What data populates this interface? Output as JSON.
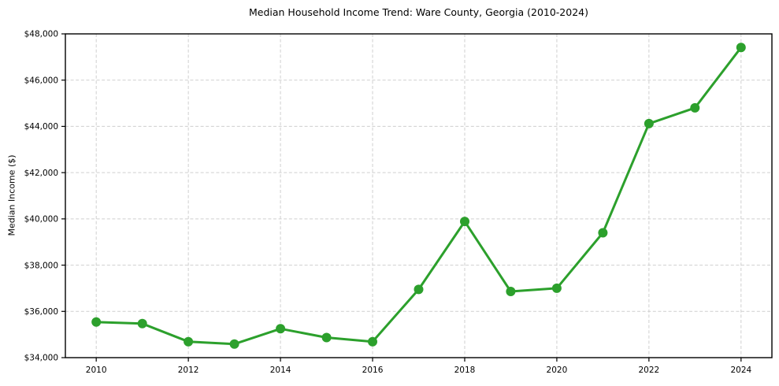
{
  "chart_data": {
    "type": "line",
    "title": "Median Household Income Trend: Ware County, Georgia (2010-2024)",
    "xlabel": "",
    "ylabel": "Median Income ($)",
    "series": [
      {
        "name": "Median Household Income",
        "x": [
          2010,
          2011,
          2012,
          2013,
          2014,
          2015,
          2016,
          2017,
          2018,
          2019,
          2020,
          2021,
          2022,
          2023,
          2024
        ],
        "values": [
          35540,
          35470,
          34690,
          34590,
          35250,
          34870,
          34690,
          36950,
          39890,
          36860,
          37000,
          39400,
          44120,
          44800,
          47410
        ]
      }
    ],
    "xlim": [
      2009.33,
      2024.67
    ],
    "ylim": [
      34000,
      48000
    ],
    "xticks": [
      2010,
      2012,
      2014,
      2016,
      2018,
      2020,
      2022,
      2024
    ],
    "xtick_labels": [
      "2010",
      "2012",
      "2014",
      "2016",
      "2018",
      "2020",
      "2022",
      "2024"
    ],
    "yticks": [
      34000,
      36000,
      38000,
      40000,
      42000,
      44000,
      46000,
      48000
    ],
    "ytick_labels": [
      "$34,000",
      "$36,000",
      "$38,000",
      "$40,000",
      "$42,000",
      "$44,000",
      "$46,000",
      "$48,000"
    ],
    "grid": "dashed, both axes",
    "legend": "none",
    "line_color": "#2ca02c",
    "marker": "circle",
    "marker_size": 6,
    "grid_color": "#cfcfcf",
    "axis_color": "#000000",
    "tick_label_color": "#000000",
    "background": "#ffffff"
  }
}
